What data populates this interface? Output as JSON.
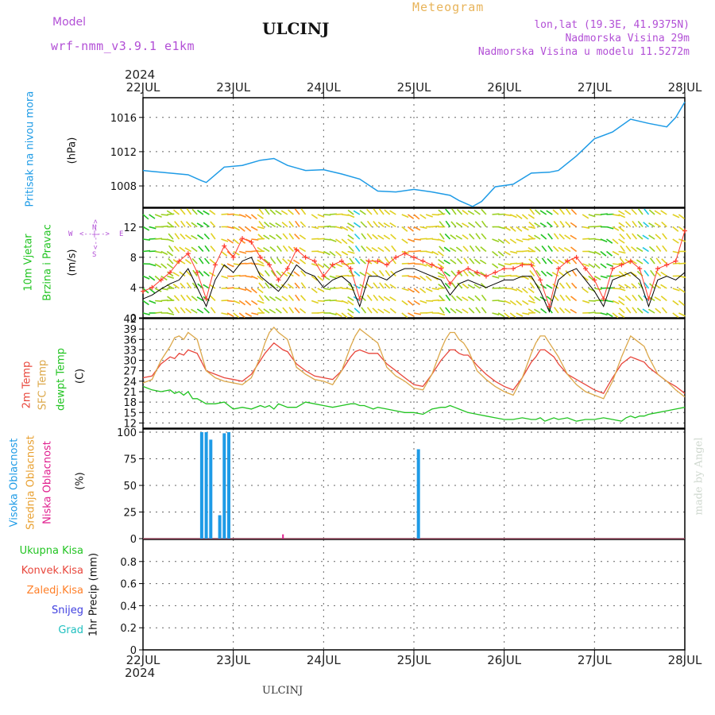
{
  "header": {
    "model_label": "Model",
    "model_name": "wrf-nmm_v3.9.1 e1km",
    "station": "ULCINJ",
    "meteogram": "Meteogram",
    "lonlat": "lon,lat (19.3E, 41.9375N)",
    "altitude": "Nadmorska Visina 29m",
    "model_altitude": "Nadmorska Visina u modelu 11.5272m",
    "year_top": "2024",
    "year_bottom": "2024",
    "footer_station": "ULCINJ",
    "credit": "made by Angel"
  },
  "compass": {
    "n": "N",
    "s": "S",
    "w": "W",
    "e": "E",
    "arrow_h": "<--|-->",
    "arrow_v": "<--|-->"
  },
  "colors": {
    "pressure": "#1e9be6",
    "wind_ms": "#000000",
    "gust": "#ff3b2f",
    "t2m": "#e8473c",
    "sfc": "#dca84a",
    "dewpt": "#22c422",
    "high_cloud": "#1e9be6",
    "mid_cloud": "#e8a030",
    "low_cloud": "#e0208f",
    "total_precip": "#22c422",
    "conv_precip": "#e8473c",
    "frozen_precip": "#ff7f27",
    "snow": "#4040e0",
    "hail": "#20c0c0",
    "grid": "#666666"
  },
  "chart_data": [
    {
      "type": "line",
      "panel": "pressure",
      "ylabel": "(hPa)",
      "side_label": "Pritisak na nivou mora",
      "x_ticks": [
        "22JUL",
        "23JUL",
        "24JUL",
        "25JUL",
        "26JUL",
        "27JUL",
        "28JUL"
      ],
      "x_range_days": [
        0,
        6
      ],
      "ylim": [
        1005.5,
        1018.3
      ],
      "y_ticks": [
        1008,
        1012,
        1016
      ],
      "series": [
        {
          "x": [
            0,
            0.1,
            0.3,
            0.5,
            0.65,
            0.7,
            0.9,
            1.1,
            1.3,
            1.45,
            1.6,
            1.8,
            2.0,
            2.2,
            2.4,
            2.6,
            2.8,
            3.0,
            3.2,
            3.4,
            3.5,
            3.65,
            3.75,
            3.9,
            4.1,
            4.3,
            4.5,
            4.6,
            4.8,
            5.0,
            5.2,
            5.4,
            5.6,
            5.8,
            5.9,
            6.0
          ],
          "values": [
            1009.8,
            1009.7,
            1009.5,
            1009.3,
            1008.6,
            1008.4,
            1010.2,
            1010.4,
            1011.0,
            1011.2,
            1010.4,
            1009.8,
            1009.9,
            1009.4,
            1008.8,
            1007.4,
            1007.3,
            1007.6,
            1007.3,
            1006.9,
            1006.3,
            1005.6,
            1006.2,
            1007.9,
            1008.2,
            1009.5,
            1009.6,
            1009.8,
            1011.5,
            1013.5,
            1014.3,
            1015.8,
            1015.3,
            1014.9,
            1016.0,
            1017.8
          ]
        }
      ]
    },
    {
      "type": "line",
      "panel": "wind",
      "ylabel": "(m/s)",
      "side_label_1": "10m Vjetar",
      "side_label_2": "Brzina i Pravac",
      "ylim": [
        0,
        14.5
      ],
      "y_ticks": [
        0,
        4,
        8,
        12
      ],
      "series": [
        {
          "name": "speed",
          "x": [
            0,
            0.1,
            0.2,
            0.3,
            0.4,
            0.5,
            0.6,
            0.7,
            0.8,
            0.9,
            1.0,
            1.1,
            1.2,
            1.3,
            1.4,
            1.5,
            1.6,
            1.7,
            1.8,
            1.9,
            2.0,
            2.1,
            2.2,
            2.3,
            2.4,
            2.5,
            2.6,
            2.7,
            2.8,
            2.9,
            3.0,
            3.1,
            3.2,
            3.3,
            3.4,
            3.5,
            3.6,
            3.7,
            3.8,
            3.9,
            4.0,
            4.1,
            4.2,
            4.3,
            4.4,
            4.5,
            4.6,
            4.7,
            4.8,
            4.9,
            5.0,
            5.1,
            5.2,
            5.3,
            5.4,
            5.5,
            5.6,
            5.7,
            5.8,
            5.9,
            6.0
          ],
          "values": [
            2.5,
            3.0,
            3.8,
            4.5,
            5.0,
            6.5,
            4.0,
            1.5,
            5.0,
            7.0,
            6.0,
            7.5,
            8.0,
            5.5,
            4.5,
            3.5,
            5.0,
            7.0,
            6.0,
            5.5,
            4.0,
            5.0,
            5.5,
            4.5,
            1.5,
            5.5,
            5.5,
            5.0,
            6.0,
            6.5,
            6.5,
            6.0,
            5.5,
            5.0,
            3.0,
            4.5,
            5.0,
            4.5,
            4.0,
            4.5,
            5.0,
            5.0,
            5.5,
            5.5,
            3.5,
            0.8,
            5.0,
            6.0,
            6.5,
            5.0,
            3.5,
            1.5,
            5.0,
            5.5,
            6.0,
            5.0,
            1.5,
            5.0,
            5.5,
            5.0,
            6.0
          ]
        },
        {
          "name": "gust",
          "x": [
            0,
            0.1,
            0.2,
            0.3,
            0.4,
            0.5,
            0.6,
            0.7,
            0.8,
            0.9,
            1.0,
            1.1,
            1.2,
            1.3,
            1.4,
            1.5,
            1.6,
            1.7,
            1.8,
            1.9,
            2.0,
            2.1,
            2.2,
            2.3,
            2.4,
            2.5,
            2.6,
            2.7,
            2.8,
            2.9,
            3.0,
            3.1,
            3.2,
            3.3,
            3.4,
            3.5,
            3.6,
            3.7,
            3.8,
            3.9,
            4.0,
            4.1,
            4.2,
            4.3,
            4.4,
            4.5,
            4.6,
            4.7,
            4.8,
            4.9,
            5.0,
            5.1,
            5.2,
            5.3,
            5.4,
            5.5,
            5.6,
            5.7,
            5.8,
            5.9,
            6.0
          ],
          "values": [
            3.5,
            4.0,
            5.0,
            6.0,
            7.5,
            8.5,
            6.0,
            2.5,
            7.0,
            9.5,
            8.0,
            10.5,
            10.0,
            8.0,
            7.0,
            5.0,
            6.5,
            9.0,
            8.0,
            7.5,
            5.5,
            7.0,
            7.5,
            6.5,
            2.5,
            7.5,
            7.5,
            7.0,
            8.0,
            8.5,
            8.0,
            7.5,
            7.0,
            6.5,
            4.5,
            6.0,
            6.5,
            6.0,
            5.5,
            6.0,
            6.5,
            6.5,
            7.0,
            7.0,
            5.0,
            1.5,
            6.5,
            7.5,
            8.0,
            6.5,
            5.0,
            2.5,
            6.5,
            7.0,
            7.5,
            6.5,
            2.5,
            6.5,
            7.0,
            7.5,
            11.5
          ]
        }
      ]
    },
    {
      "type": "line",
      "panel": "temperature",
      "ylabel": "(C)",
      "side_label_1": "2m Temp",
      "side_label_2": "SFC Temp",
      "side_label_3": "dewpt Temp",
      "ylim": [
        10.5,
        42
      ],
      "y_ticks": [
        12,
        15,
        18,
        21,
        24,
        27,
        30,
        33,
        36,
        39,
        42
      ],
      "x": [
        0,
        0.1,
        0.2,
        0.3,
        0.35,
        0.4,
        0.45,
        0.5,
        0.55,
        0.6,
        0.7,
        0.8,
        0.9,
        1.0,
        1.1,
        1.2,
        1.3,
        1.35,
        1.4,
        1.45,
        1.5,
        1.55,
        1.6,
        1.7,
        1.8,
        1.9,
        2.0,
        2.1,
        2.2,
        2.3,
        2.35,
        2.4,
        2.45,
        2.5,
        2.55,
        2.6,
        2.7,
        2.8,
        2.9,
        3.0,
        3.1,
        3.2,
        3.3,
        3.35,
        3.4,
        3.45,
        3.5,
        3.55,
        3.6,
        3.7,
        3.8,
        3.9,
        4.0,
        4.1,
        4.2,
        4.3,
        4.35,
        4.4,
        4.45,
        4.5,
        4.55,
        4.6,
        4.7,
        4.8,
        4.9,
        5.0,
        5.1,
        5.2,
        5.3,
        5.35,
        5.4,
        5.45,
        5.5,
        5.55,
        5.6,
        5.7,
        5.8,
        5.9,
        6.0
      ],
      "series": [
        {
          "name": "2m Temp",
          "values": [
            25,
            25.5,
            29,
            31,
            30.5,
            32,
            31.5,
            33,
            32.5,
            32,
            27,
            26,
            25,
            24.5,
            24,
            26,
            30,
            32,
            33.5,
            35,
            34,
            33,
            32.5,
            29,
            27,
            25.5,
            25,
            24.5,
            27,
            31,
            32.5,
            33,
            32.5,
            32,
            32,
            32,
            29,
            27,
            25,
            23,
            22.5,
            26,
            30,
            31.5,
            33,
            33,
            32,
            31.5,
            31.5,
            28.5,
            26,
            24,
            22.5,
            21.5,
            25,
            29.5,
            31,
            33,
            33,
            32,
            31,
            29,
            26,
            24.5,
            23,
            21.5,
            20.5,
            25,
            29,
            30,
            31,
            30.5,
            30,
            29.5,
            28,
            26,
            24,
            22.5,
            20.5
          ]
        },
        {
          "name": "SFC Temp",
          "values": [
            23.5,
            24.5,
            30,
            34,
            36.5,
            37,
            36,
            38,
            37,
            36,
            27,
            25,
            24,
            23.5,
            23,
            25,
            31,
            35,
            38,
            39.5,
            38,
            37,
            36,
            28,
            26,
            24.5,
            24,
            23,
            27,
            34,
            37,
            39,
            38,
            37,
            36,
            35,
            28,
            25.5,
            24,
            22,
            21.5,
            26,
            33,
            36,
            38,
            38,
            36,
            35,
            33,
            27,
            24.5,
            22.5,
            21,
            20,
            25,
            32,
            35,
            37,
            37,
            35,
            33,
            31,
            26,
            23,
            21,
            20,
            19,
            24,
            31,
            34,
            37,
            36,
            35,
            34,
            31,
            26,
            24,
            21.5,
            19.5
          ]
        },
        {
          "name": "dewpt Temp",
          "values": [
            22.5,
            21.5,
            21,
            21.5,
            20.5,
            21,
            20,
            21,
            19,
            19,
            17.5,
            17.5,
            18,
            16,
            16.5,
            16,
            17,
            16.5,
            17,
            16,
            17.5,
            17,
            16.5,
            16.5,
            18,
            17.5,
            17,
            16.5,
            17,
            17.5,
            17.5,
            17,
            17,
            16.5,
            16,
            16.5,
            16,
            15.5,
            15,
            15,
            14.5,
            16,
            16.5,
            16.5,
            17,
            16.5,
            16,
            15.5,
            15,
            14.5,
            14,
            13.5,
            13,
            13,
            13.5,
            13,
            13,
            13.5,
            12.5,
            13,
            13.5,
            13,
            13.5,
            12.5,
            13,
            13,
            13.5,
            13,
            12.5,
            13.5,
            14,
            13.5,
            14,
            14,
            14.5,
            15,
            15.5,
            16,
            16.5
          ]
        }
      ]
    },
    {
      "type": "bar",
      "panel": "cloud",
      "ylabel": "(%)",
      "side_label_1": "Visoka Oblacnost",
      "side_label_2": "Srednja Oblacnost",
      "side_label_3": "Niska Oblacnost",
      "ylim": [
        0,
        103
      ],
      "y_ticks": [
        0,
        25,
        50,
        75,
        100
      ],
      "series": [
        {
          "name": "Visoka Oblacnost",
          "x": [
            0.65,
            0.7,
            0.75,
            0.8,
            0.85,
            0.9,
            0.95,
            3.05
          ],
          "values": [
            100,
            100,
            93,
            0,
            22,
            99,
            100,
            84
          ]
        },
        {
          "name": "Niska Oblacnost",
          "x": [
            1.55
          ],
          "values": [
            4
          ]
        }
      ]
    },
    {
      "type": "line",
      "panel": "precip",
      "ylabel": "1hr Precip (mm)",
      "legend": [
        "Ukupna Kisa",
        "Konvek.Kisa",
        "Zaledj.Kisa",
        "Snijeg",
        "Grad"
      ],
      "ylim": [
        0,
        1
      ],
      "y_ticks": [
        0,
        0.2,
        0.4,
        0.6,
        0.8
      ],
      "y_tick_labels": [
        "0",
        "0.2",
        "0.4",
        "0.6",
        "0.8"
      ],
      "series": [
        {
          "name": "Ukupna Kisa",
          "values": []
        }
      ]
    }
  ]
}
